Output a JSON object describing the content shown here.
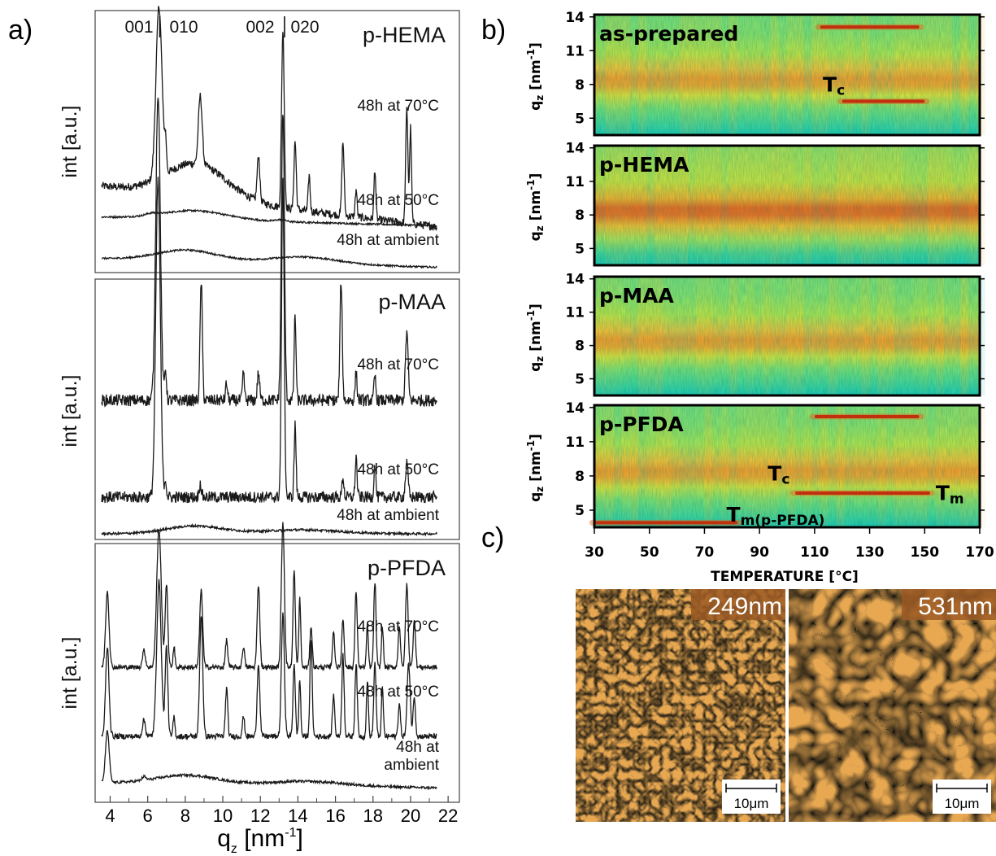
{
  "panel_labels": {
    "a": "a)",
    "b": "b)",
    "c": "c)"
  },
  "colors": {
    "heat_low": "#2fd3b2",
    "heat_mid": "#c8ea42",
    "heat_high": "#f0a028",
    "heat_peak": "#b01010",
    "afm_dark": "#3a1c08",
    "afm_light": "#fff2c0",
    "afm_label_bg": "#9c5a24"
  },
  "chart_data": [
    {
      "type": "line",
      "panel": "a",
      "x_ticks": [
        "4",
        "6",
        "8",
        "10",
        "12",
        "14",
        "16",
        "18",
        "20",
        "22"
      ],
      "xlim": [
        3.2,
        22.6
      ],
      "xlabel": "q",
      "xlabel_sub": "z",
      "xlabel_unit": " [nm",
      "xlabel_unit_sup": "-1",
      "xlabel_close": "]",
      "reflection_labels": [
        "001",
        "010",
        "002",
        "020"
      ],
      "subplots": [
        {
          "name": "p-HEMA",
          "ylabel": "int [a.u.]",
          "series": [
            {
              "name": "48h at 70°C",
              "baseline": 0.5,
              "base_slope": -0.01,
              "humps": [
                [
                  8.6,
                  1.6,
                  0.15
                ]
              ],
              "peaks": [
                [
                  6.6,
                  0.16,
                  0.75
                ],
                [
                  6.95,
                  0.05,
                  0.12
                ],
                [
                  8.8,
                  0.1,
                  0.3
                ],
                [
                  11.9,
                  0.07,
                  0.2
                ],
                [
                  13.2,
                  0.07,
                  0.78
                ],
                [
                  13.85,
                  0.06,
                  0.3
                ],
                [
                  14.6,
                  0.05,
                  0.16
                ],
                [
                  16.4,
                  0.06,
                  0.32
                ],
                [
                  17.1,
                  0.05,
                  0.12
                ],
                [
                  18.1,
                  0.05,
                  0.22
                ],
                [
                  19.8,
                  0.06,
                  0.5
                ],
                [
                  20.0,
                  0.05,
                  0.42
                ]
              ]
            },
            {
              "name": "48h at 50°C",
              "baseline": 0.4,
              "base_slope": -0.01,
              "humps": [
                [
                  8.5,
                  1.7,
                  0.18
                ]
              ],
              "peaks": [
                [
                  6.2,
                  0.3,
                  0.04
                ],
                [
                  13.1,
                  0.25,
                  0.04
                ]
              ]
            },
            {
              "name": "48h at ambient",
              "baseline": 0.3,
              "base_slope": -0.01,
              "humps": [
                [
                  8.1,
                  1.6,
                  0.22
                ],
                [
                  14.3,
                  1.8,
                  0.14
                ]
              ],
              "peaks": []
            }
          ]
        },
        {
          "name": "p-MAA",
          "ylabel": "int [a.u.]",
          "series": [
            {
              "name": "48h at 70°C",
              "baseline": 0.5,
              "base_slope": 0,
              "humps": [],
              "peaks": [
                [
                  6.55,
                  0.12,
                  0.9
                ],
                [
                  6.95,
                  0.05,
                  0.09
                ],
                [
                  8.85,
                  0.06,
                  0.35
                ],
                [
                  10.2,
                  0.05,
                  0.05
                ],
                [
                  11.1,
                  0.05,
                  0.08
                ],
                [
                  11.9,
                  0.06,
                  0.08
                ],
                [
                  13.2,
                  0.08,
                  0.85
                ],
                [
                  13.85,
                  0.05,
                  0.25
                ],
                [
                  16.3,
                  0.06,
                  0.35
                ],
                [
                  17.1,
                  0.05,
                  0.08
                ],
                [
                  18.1,
                  0.05,
                  0.07
                ],
                [
                  19.8,
                  0.07,
                  0.2
                ]
              ]
            },
            {
              "name": "48h at 50°C",
              "baseline": 0.45,
              "base_slope": 0,
              "humps": [],
              "peaks": [
                [
                  6.55,
                  0.12,
                  0.95
                ],
                [
                  6.95,
                  0.05,
                  0.05
                ],
                [
                  8.8,
                  0.06,
                  0.04
                ],
                [
                  13.2,
                  0.07,
                  0.95
                ],
                [
                  13.85,
                  0.05,
                  0.22
                ],
                [
                  16.4,
                  0.05,
                  0.06
                ],
                [
                  17.1,
                  0.05,
                  0.12
                ],
                [
                  18.1,
                  0.05,
                  0.1
                ],
                [
                  19.8,
                  0.07,
                  0.1
                ]
              ]
            },
            {
              "name": "48h at ambient",
              "baseline": 0.35,
              "base_slope": 0,
              "humps": [
                [
                  8.5,
                  1.5,
                  0.12
                ],
                [
                  14.2,
                  2,
                  0.06
                ]
              ],
              "peaks": []
            }
          ]
        },
        {
          "name": "p-PFDA",
          "ylabel": "int [a.u.]",
          "series": [
            {
              "name": "48h at 70°C",
              "baseline": 0.5,
              "base_slope": 0,
              "humps": [],
              "peaks": [
                [
                  3.85,
                  0.09,
                  0.55
                ],
                [
                  5.8,
                  0.08,
                  0.12
                ],
                [
                  6.6,
                  0.12,
                  1.0
                ],
                [
                  7.0,
                  0.07,
                  0.6
                ],
                [
                  7.4,
                  0.05,
                  0.15
                ],
                [
                  8.85,
                  0.08,
                  0.55
                ],
                [
                  10.2,
                  0.06,
                  0.2
                ],
                [
                  11.1,
                  0.06,
                  0.15
                ],
                [
                  11.9,
                  0.07,
                  0.6
                ],
                [
                  13.2,
                  0.08,
                  1.05
                ],
                [
                  13.8,
                  0.06,
                  0.7
                ],
                [
                  14.1,
                  0.05,
                  0.5
                ],
                [
                  14.7,
                  0.06,
                  0.3
                ],
                [
                  15.9,
                  0.06,
                  0.25
                ],
                [
                  16.4,
                  0.06,
                  0.35
                ],
                [
                  17.1,
                  0.06,
                  0.55
                ],
                [
                  17.7,
                  0.05,
                  0.3
                ],
                [
                  18.1,
                  0.06,
                  0.62
                ],
                [
                  18.5,
                  0.05,
                  0.3
                ],
                [
                  19.4,
                  0.06,
                  0.3
                ],
                [
                  19.8,
                  0.07,
                  0.6
                ],
                [
                  20.2,
                  0.06,
                  0.35
                ]
              ]
            },
            {
              "name": "48h at 50°C",
              "baseline": 0.45,
              "base_slope": 0,
              "humps": [],
              "peaks": [
                [
                  3.85,
                  0.09,
                  0.55
                ],
                [
                  5.8,
                  0.08,
                  0.1
                ],
                [
                  6.6,
                  0.12,
                  0.95
                ],
                [
                  7.0,
                  0.07,
                  0.55
                ],
                [
                  7.4,
                  0.05,
                  0.12
                ],
                [
                  8.85,
                  0.08,
                  0.75
                ],
                [
                  10.2,
                  0.06,
                  0.3
                ],
                [
                  11.1,
                  0.06,
                  0.12
                ],
                [
                  11.9,
                  0.07,
                  0.45
                ],
                [
                  13.2,
                  0.08,
                  0.75
                ],
                [
                  13.8,
                  0.06,
                  0.45
                ],
                [
                  14.1,
                  0.05,
                  0.35
                ],
                [
                  14.7,
                  0.06,
                  0.6
                ],
                [
                  15.9,
                  0.06,
                  0.25
                ],
                [
                  16.4,
                  0.06,
                  0.5
                ],
                [
                  17.1,
                  0.06,
                  0.45
                ],
                [
                  17.7,
                  0.05,
                  0.35
                ],
                [
                  18.1,
                  0.06,
                  0.45
                ],
                [
                  18.5,
                  0.05,
                  0.3
                ],
                [
                  19.4,
                  0.06,
                  0.2
                ],
                [
                  19.9,
                  0.08,
                  0.45
                ],
                [
                  20.2,
                  0.06,
                  0.25
                ]
              ]
            },
            {
              "name": "48h at",
              "name_line2": "ambient",
              "baseline": 0.45,
              "base_slope": -0.004,
              "humps": [
                [
                  8.1,
                  1.6,
                  0.12
                ],
                [
                  14.5,
                  2,
                  0.06
                ]
              ],
              "peaks": [
                [
                  3.85,
                  0.1,
                  0.7
                ],
                [
                  5.8,
                  0.1,
                  0.05
                ]
              ]
            }
          ]
        }
      ]
    },
    {
      "type": "heatmap",
      "panel": "b",
      "x_ticks": [
        "30",
        "50",
        "70",
        "90",
        "110",
        "130",
        "150",
        "170"
      ],
      "xlim": [
        30,
        170
      ],
      "xlabel": "TEMPERATURE [°C]",
      "ylim": [
        3.5,
        14.2
      ],
      "ylabel": "q",
      "ylabel_sub": "z",
      "ylabel_unit": " [nm",
      "ylabel_unit_sup": "-1",
      "ylabel_close": "]",
      "y_ticks": [
        "14",
        "11",
        "8",
        "5"
      ],
      "maps": [
        {
          "name": "as-prepared",
          "features": [
            {
              "type": "streak",
              "q": 13.1,
              "t_from": 112,
              "t_to": 148
            },
            {
              "type": "streak",
              "q": 6.5,
              "t_from": 120,
              "t_to": 150
            }
          ],
          "annotations": [
            {
              "text": "T",
              "sub": "c",
              "t": 113,
              "q": 8.1
            }
          ]
        },
        {
          "name": "p-HEMA",
          "features": [],
          "annotations": []
        },
        {
          "name": "p-MAA",
          "features": [],
          "annotations": []
        },
        {
          "name": "p-PFDA",
          "features": [
            {
              "type": "streak",
              "q": 13.2,
              "t_from": 110,
              "t_to": 148
            },
            {
              "type": "streak",
              "q": 6.5,
              "t_from": 103,
              "t_to": 152
            },
            {
              "type": "streak",
              "q": 3.9,
              "t_from": 30,
              "t_to": 82
            }
          ],
          "annotations": [
            {
              "text": "T",
              "sub": "c",
              "t": 93,
              "q": 8.3
            },
            {
              "text": "T",
              "sub": "m",
              "t": 154,
              "q": 6.6
            },
            {
              "text": "T",
              "sub": "m(p-PFDA)",
              "t": 78,
              "q": 4.7
            }
          ]
        }
      ]
    }
  ],
  "afm": {
    "images": [
      {
        "thickness_label": "249nm",
        "scale_bar": "10μm"
      },
      {
        "thickness_label": "531nm",
        "scale_bar": "10μm"
      }
    ]
  }
}
